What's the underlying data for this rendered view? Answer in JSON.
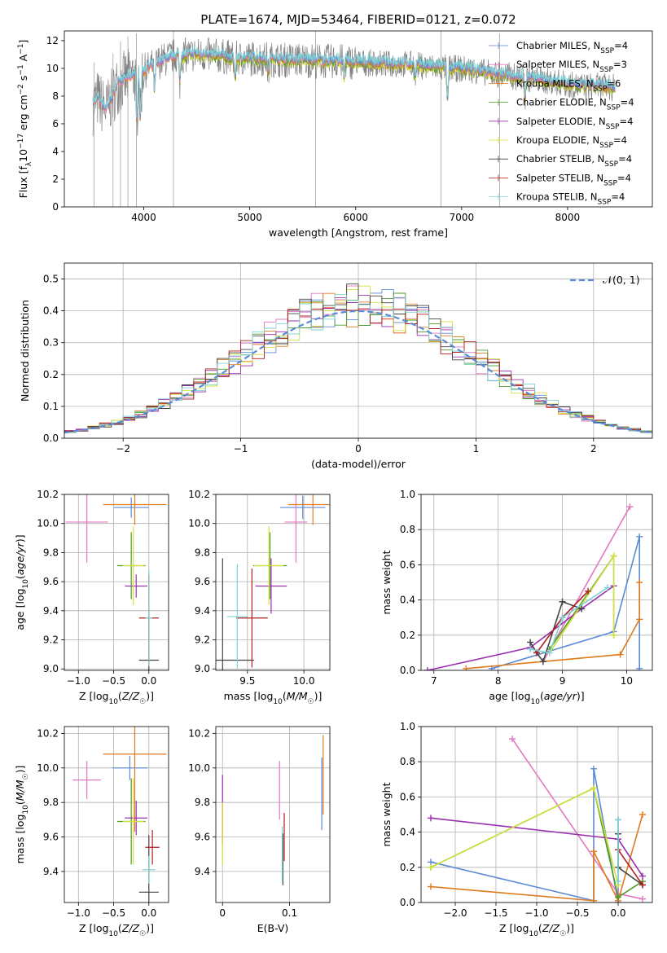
{
  "figure_title": "PLATE=1674, MJD=53464, FIBERID=0121, z=0.072",
  "colors": {
    "Chabrier MILES": "#5b8bd6",
    "Salpeter MILES": "#e377c2",
    "Kroupa MILES": "#e07b1d",
    "Chabrier ELODIE": "#4e9a2a",
    "Salpeter ELODIE": "#9b30b0",
    "Kroupa ELODIE": "#d6e03a",
    "Chabrier STELIB": "#444444",
    "Salpeter STELIB": "#b01e1e",
    "Kroupa STELIB": "#7fd3d3",
    "data": "#808080",
    "normal": "#5b8bd6"
  },
  "chart_data": [
    {
      "id": "spectrum",
      "type": "line",
      "xlabel": "wavelength [Angstrom, rest frame]",
      "ylabel": "Flux [f",
      "xlim": [
        3250,
        8800
      ],
      "ylim": [
        0,
        12.7
      ],
      "xticks": [
        "4000",
        "5000",
        "6000",
        "7000",
        "8000"
      ],
      "xtick_values": [
        4000,
        5000,
        6000,
        7000,
        8000
      ],
      "yticks": [
        "0",
        "2",
        "4",
        "6",
        "8",
        "10",
        "12"
      ],
      "ytick_values": [
        0,
        2,
        4,
        6,
        8,
        10,
        12
      ],
      "legend": [
        {
          "name": "Chabrier MILES",
          "nssp": "4"
        },
        {
          "name": "Salpeter MILES",
          "nssp": "3"
        },
        {
          "name": "Kroupa MILES",
          "nssp": "6"
        },
        {
          "name": "Chabrier ELODIE",
          "nssp": "4"
        },
        {
          "name": "Salpeter ELODIE",
          "nssp": "4"
        },
        {
          "name": "Kroupa ELODIE",
          "nssp": "4"
        },
        {
          "name": "Chabrier STELIB",
          "nssp": "4"
        },
        {
          "name": "Salpeter STELIB",
          "nssp": "4"
        },
        {
          "name": "Kroupa STELIB",
          "nssp": "4"
        }
      ],
      "continuum": {
        "x": [
          3520,
          3560,
          3650,
          3750,
          3850,
          3950,
          4050,
          4150,
          4300,
          4500,
          4700,
          4900,
          5100,
          5300,
          5500,
          5700,
          5900,
          6100,
          6300,
          6500,
          6700,
          6900,
          7100,
          7300,
          7500,
          7700,
          7900,
          8100,
          8300,
          8450
        ],
        "y": [
          7.3,
          7.8,
          7.0,
          8.8,
          9.3,
          9.6,
          10.0,
          10.5,
          10.9,
          11.0,
          10.9,
          10.7,
          10.7,
          10.6,
          10.6,
          10.5,
          10.5,
          10.4,
          10.3,
          10.3,
          10.1,
          10.0,
          9.9,
          9.6,
          9.4,
          9.2,
          9.0,
          8.7,
          8.7,
          8.6
        ]
      }
    },
    {
      "id": "residuals",
      "type": "histogram",
      "xlabel": "(data-model)/error",
      "ylabel": "Normed distribution",
      "xlim": [
        -2.5,
        2.5
      ],
      "ylim": [
        0,
        0.55
      ],
      "xticks": [
        "−2",
        "−1",
        "0",
        "1",
        "2"
      ],
      "xtick_values": [
        -2,
        -1,
        0,
        1,
        2
      ],
      "yticks": [
        "0.0",
        "0.1",
        "0.2",
        "0.3",
        "0.4",
        "0.5"
      ],
      "ytick_values": [
        0,
        0.1,
        0.2,
        0.3,
        0.4,
        0.5
      ],
      "legend_label": "𝒩(0, 1)",
      "bin_width": 0.1
    },
    {
      "id": "age-vs-Z",
      "type": "errorbar",
      "xlabel": "Z [log10(Z/Z☉)]",
      "ylabel": "age  [log10(age/yr)]",
      "xlim": [
        -1.2,
        0.28
      ],
      "ylim": [
        8.99,
        10.2
      ],
      "xticks": [
        "−1.0",
        "−0.5",
        "0.0"
      ],
      "xtick_values": [
        -1.0,
        -0.5,
        0.0
      ],
      "yticks": [
        "9.0",
        "9.2",
        "9.4",
        "9.6",
        "9.8",
        "10.0",
        "10.2"
      ],
      "ytick_values": [
        9.0,
        9.2,
        9.4,
        9.6,
        9.8,
        10.0,
        10.2
      ],
      "points": [
        {
          "series": "Chabrier MILES",
          "x": -0.25,
          "xerr": 0.25,
          "y": 10.11,
          "yerr": 0.07
        },
        {
          "series": "Salpeter MILES",
          "x": -0.88,
          "xerr": 0.3,
          "y": 10.01,
          "yerr": 0.28
        },
        {
          "series": "Kroupa MILES",
          "x": -0.2,
          "xerr": 0.45,
          "y": 10.13,
          "yerr": 0.14
        },
        {
          "series": "Chabrier ELODIE",
          "x": -0.25,
          "xerr": 0.2,
          "y": 9.71,
          "yerr": 0.23
        },
        {
          "series": "Salpeter ELODIE",
          "x": -0.18,
          "xerr": 0.16,
          "y": 9.57,
          "yerr": 0.08
        },
        {
          "series": "Kroupa ELODIE",
          "x": -0.22,
          "xerr": 0.15,
          "y": 9.71,
          "yerr": 0.27
        },
        {
          "series": "Chabrier STELIB",
          "x": 0.0,
          "xerr": 0.14,
          "y": 9.06,
          "yerr": 0.31
        },
        {
          "series": "Salpeter STELIB",
          "x": 0.0,
          "xerr": 0.14,
          "y": 9.35,
          "yerr": 0.3
        },
        {
          "series": "Kroupa STELIB",
          "x": 0.0,
          "xerr": 0.05,
          "y": 9.35,
          "yerr": 0.33
        }
      ]
    },
    {
      "id": "age-vs-mass",
      "type": "errorbar",
      "xlabel": "mass [log10(M/M☉)]",
      "ylabel": "",
      "xlim": [
        9.22,
        10.23
      ],
      "ylim": [
        8.99,
        10.2
      ],
      "xticks": [
        "9.5",
        "10.0"
      ],
      "xtick_values": [
        9.5,
        10.0
      ],
      "yticks": [
        "9.0",
        "9.2",
        "9.4",
        "9.6",
        "9.8",
        "10.0",
        "10.2"
      ],
      "ytick_values": [
        9.0,
        9.2,
        9.4,
        9.6,
        9.8,
        10.0,
        10.2
      ],
      "points": [
        {
          "series": "Chabrier MILES",
          "x": 9.99,
          "xerr": 0.2,
          "y": 10.11,
          "yerr": 0.08
        },
        {
          "series": "Salpeter MILES",
          "x": 9.93,
          "xerr": 0.1,
          "y": 10.01,
          "yerr": 0.28
        },
        {
          "series": "Kroupa MILES",
          "x": 10.08,
          "xerr": 0.22,
          "y": 10.13,
          "yerr": 0.14
        },
        {
          "series": "Chabrier ELODIE",
          "x": 9.7,
          "xerr": 0.15,
          "y": 9.71,
          "yerr": 0.23
        },
        {
          "series": "Salpeter ELODIE",
          "x": 9.71,
          "xerr": 0.14,
          "y": 9.57,
          "yerr": 0.19
        },
        {
          "series": "Kroupa ELODIE",
          "x": 9.69,
          "xerr": 0.13,
          "y": 9.71,
          "yerr": 0.27
        },
        {
          "series": "Chabrier STELIB",
          "x": 9.28,
          "xerr": 0.28,
          "y": 9.06,
          "yerr": 0.7
        },
        {
          "series": "Salpeter STELIB",
          "x": 9.54,
          "xerr": 0.14,
          "y": 9.35,
          "yerr": 0.34
        },
        {
          "series": "Kroupa STELIB",
          "x": 9.41,
          "xerr": 0.09,
          "y": 9.36,
          "yerr": 0.36
        }
      ]
    },
    {
      "id": "weight-vs-age",
      "type": "line",
      "xlabel": "age  [log10(age/yr)]",
      "ylabel": "mass weight",
      "xlim": [
        6.8,
        10.4
      ],
      "ylim": [
        0,
        1.0
      ],
      "xticks": [
        "7",
        "8",
        "9",
        "10"
      ],
      "xtick_values": [
        7,
        8,
        9,
        10
      ],
      "yticks": [
        "0.0",
        "0.2",
        "0.4",
        "0.6",
        "0.8",
        "1.0"
      ],
      "ytick_values": [
        0,
        0.2,
        0.4,
        0.6,
        0.8,
        1.0
      ],
      "series": [
        {
          "name": "Chabrier MILES",
          "x": [
            7.9,
            9.8,
            10.2,
            10.2
          ],
          "y": [
            0.01,
            0.22,
            0.76,
            0.01
          ]
        },
        {
          "name": "Salpeter MILES",
          "x": [
            8.7,
            10.05
          ],
          "y": [
            0.05,
            0.93
          ]
        },
        {
          "name": "Kroupa MILES",
          "x": [
            7.5,
            9.9,
            10.2,
            10.2
          ],
          "y": [
            0.01,
            0.09,
            0.29,
            0.5
          ]
        },
        {
          "name": "Chabrier ELODIE",
          "x": [
            8.8,
            9.8,
            9.8
          ],
          "y": [
            0.12,
            0.65,
            0.2
          ]
        },
        {
          "name": "Salpeter ELODIE",
          "x": [
            6.9,
            8.5,
            9.3,
            9.8
          ],
          "y": [
            0.0,
            0.13,
            0.35,
            0.48
          ]
        },
        {
          "name": "Kroupa ELODIE",
          "x": [
            8.8,
            9.8,
            9.8
          ],
          "y": [
            0.1,
            0.65,
            0.2
          ]
        },
        {
          "name": "Chabrier STELIB",
          "x": [
            8.5,
            8.6,
            8.7,
            9.0,
            9.3
          ],
          "y": [
            0.16,
            0.1,
            0.05,
            0.39,
            0.35
          ]
        },
        {
          "name": "Salpeter STELIB",
          "x": [
            8.6,
            9.0,
            9.4
          ],
          "y": [
            0.1,
            0.3,
            0.45
          ]
        },
        {
          "name": "Kroupa STELIB",
          "x": [
            8.5,
            8.8,
            9.0,
            9.7
          ],
          "y": [
            0.12,
            0.1,
            0.3,
            0.47
          ]
        }
      ]
    },
    {
      "id": "mass-vs-Z",
      "type": "errorbar",
      "xlabel": "Z [log10(Z/Z☉)]",
      "ylabel": "mass [log10(M/M☉)]",
      "xlim": [
        -1.2,
        0.28
      ],
      "ylim": [
        9.22,
        10.24
      ],
      "xticks": [
        "−1.0",
        "−0.5",
        "0.0"
      ],
      "xtick_values": [
        -1.0,
        -0.5,
        0.0
      ],
      "yticks": [
        "9.4",
        "9.6",
        "9.8",
        "10.0",
        "10.2"
      ],
      "ytick_values": [
        9.4,
        9.6,
        9.8,
        10.0,
        10.2
      ],
      "points": [
        {
          "series": "Chabrier MILES",
          "x": -0.27,
          "xerr": 0.25,
          "y": 10.0,
          "yerr": 0.07
        },
        {
          "series": "Salpeter MILES",
          "x": -0.88,
          "xerr": 0.2,
          "y": 9.93,
          "yerr": 0.11
        },
        {
          "series": "Kroupa MILES",
          "x": -0.2,
          "xerr": 0.45,
          "y": 10.08,
          "yerr": 0.45
        },
        {
          "series": "Chabrier ELODIE",
          "x": -0.25,
          "xerr": 0.2,
          "y": 9.69,
          "yerr": 0.25
        },
        {
          "series": "Salpeter ELODIE",
          "x": -0.18,
          "xerr": 0.16,
          "y": 9.71,
          "yerr": 0.1
        },
        {
          "series": "Kroupa ELODIE",
          "x": -0.22,
          "xerr": 0.15,
          "y": 9.69,
          "yerr": 0.25
        },
        {
          "series": "Chabrier STELIB",
          "x": 0.0,
          "xerr": 0.14,
          "y": 9.28,
          "yerr": 0.33
        },
        {
          "series": "Salpeter STELIB",
          "x": 0.05,
          "xerr": 0.1,
          "y": 9.54,
          "yerr": 0.1
        },
        {
          "series": "Kroupa STELIB",
          "x": 0.0,
          "xerr": 0.09,
          "y": 9.41,
          "yerr": 0.08
        }
      ]
    },
    {
      "id": "mass-vs-ebv",
      "type": "errorbar",
      "xlabel": "E(B-V)",
      "ylabel": "",
      "xlim": [
        -0.01,
        0.16
      ],
      "ylim": [
        9.22,
        10.24
      ],
      "xticks": [
        "0",
        "0.1"
      ],
      "xtick_values": [
        0.0,
        0.1
      ],
      "yticks": [
        "9.4",
        "9.6",
        "9.8",
        "10.0",
        "10.2"
      ],
      "ytick_values": [
        9.4,
        9.6,
        9.8,
        10.0,
        10.2
      ],
      "points": [
        {
          "series": "Salpeter MILES",
          "x": 0.085,
          "xerr": 0.0,
          "y": 9.87,
          "yerr": 0.17
        },
        {
          "series": "Kroupa MILES",
          "x": 0.15,
          "xerr": 0.0,
          "y": 9.96,
          "yerr": 0.23
        },
        {
          "series": "Chabrier MILES",
          "x": 0.148,
          "xerr": 0.0,
          "y": 9.85,
          "yerr": 0.21
        },
        {
          "series": "Salpeter ELODIE",
          "x": 0.0,
          "xerr": 0.0,
          "y": 9.76,
          "yerr": 0.2
        },
        {
          "series": "Kroupa ELODIE",
          "x": 0.0,
          "xerr": 0.0,
          "y": 9.62,
          "yerr": 0.18
        },
        {
          "series": "Chabrier STELIB",
          "x": 0.09,
          "xerr": 0.0,
          "y": 9.47,
          "yerr": 0.15
        },
        {
          "series": "Salpeter STELIB",
          "x": 0.092,
          "xerr": 0.0,
          "y": 9.6,
          "yerr": 0.14
        },
        {
          "series": "Kroupa STELIB",
          "x": 0.089,
          "xerr": 0.0,
          "y": 9.5,
          "yerr": 0.16
        }
      ]
    },
    {
      "id": "weight-vs-Z",
      "type": "line",
      "xlabel": "Z [log10(Z/Z☉)]",
      "ylabel": "mass weight",
      "xlim": [
        -2.42,
        0.42
      ],
      "ylim": [
        0,
        1.0
      ],
      "xticks": [
        "−2.0",
        "−1.5",
        "−1.0",
        "−0.5",
        "0.0"
      ],
      "xtick_values": [
        -2.0,
        -1.5,
        -1.0,
        -0.5,
        0.0
      ],
      "yticks": [
        "0.0",
        "0.2",
        "0.4",
        "0.6",
        "0.8",
        "1.0"
      ],
      "ytick_values": [
        0,
        0.2,
        0.4,
        0.6,
        0.8,
        1.0
      ],
      "series": [
        {
          "name": "Chabrier MILES",
          "x": [
            -2.3,
            -0.3,
            -0.3,
            0.0,
            0.0
          ],
          "y": [
            0.23,
            0.01,
            0.76,
            0.0,
            0.47
          ]
        },
        {
          "name": "Salpeter MILES",
          "x": [
            -1.3,
            0.0,
            0.3
          ],
          "y": [
            0.93,
            0.05,
            0.02
          ]
        },
        {
          "name": "Kroupa MILES",
          "x": [
            -2.3,
            -0.3,
            -0.3,
            0.0,
            0.3
          ],
          "y": [
            0.09,
            0.01,
            0.29,
            0.01,
            0.5
          ]
        },
        {
          "name": "Chabrier ELODIE",
          "x": [
            -2.3,
            -0.3,
            0.0,
            0.3
          ],
          "y": [
            0.2,
            0.65,
            0.03,
            0.12
          ]
        },
        {
          "name": "Salpeter ELODIE",
          "x": [
            -2.3,
            0.0,
            0.3
          ],
          "y": [
            0.48,
            0.36,
            0.15
          ]
        },
        {
          "name": "Kroupa ELODIE",
          "x": [
            -2.3,
            -0.3,
            0.0
          ],
          "y": [
            0.2,
            0.65,
            0.1
          ]
        },
        {
          "name": "Chabrier STELIB",
          "x": [
            0.0,
            0.0,
            0.3
          ],
          "y": [
            0.39,
            0.2,
            0.1
          ]
        },
        {
          "name": "Salpeter STELIB",
          "x": [
            0.0,
            0.3
          ],
          "y": [
            0.3,
            0.1
          ]
        },
        {
          "name": "Kroupa STELIB",
          "x": [
            0.0,
            0.0
          ],
          "y": [
            0.47,
            0.12
          ]
        }
      ]
    }
  ]
}
